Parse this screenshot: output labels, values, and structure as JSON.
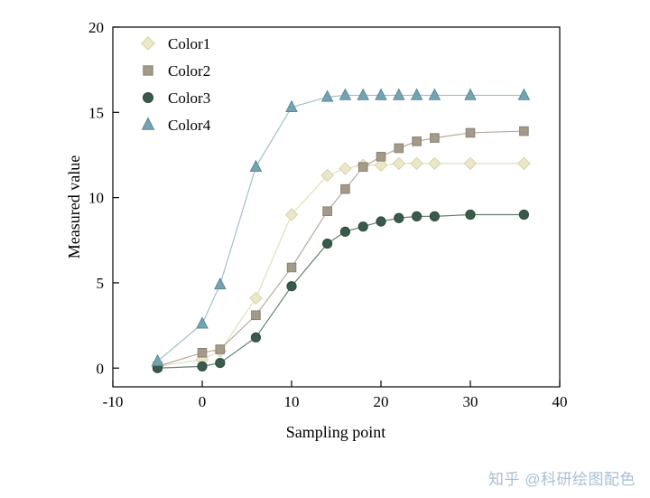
{
  "watermark": {
    "text": "知乎 @科研绘图配色",
    "color": "#a9bfd3"
  },
  "chart_data": {
    "type": "line",
    "title": "",
    "xlabel": "Sampling point",
    "ylabel": "Measured value",
    "xlim": [
      -10,
      40
    ],
    "ylim": [
      -1.1,
      20
    ],
    "xticks": [
      -10,
      0,
      10,
      20,
      30,
      40
    ],
    "yticks": [
      0,
      5,
      10,
      15,
      20
    ],
    "grid": false,
    "legend_position": "top-left-inside",
    "x": [
      -5,
      0,
      2,
      6,
      10,
      14,
      16,
      18,
      20,
      22,
      24,
      26,
      30,
      36
    ],
    "series": [
      {
        "name": "Color1",
        "marker": "diamond",
        "color": "#eae7cb",
        "edge": "#d9d3a9",
        "line": "#e2dfc0",
        "values": [
          0.1,
          0.5,
          1.0,
          4.1,
          9.0,
          11.3,
          11.7,
          11.9,
          11.9,
          12.0,
          12.0,
          12.0,
          12.0,
          12.0
        ]
      },
      {
        "name": "Color2",
        "marker": "square",
        "color": "#a49a89",
        "edge": "#8b8172",
        "line": "#b4ab9c",
        "values": [
          0.1,
          0.9,
          1.1,
          3.1,
          5.9,
          9.2,
          10.5,
          11.8,
          12.4,
          12.9,
          13.3,
          13.5,
          13.8,
          13.9
        ]
      },
      {
        "name": "Color3",
        "marker": "circle",
        "color": "#3a5a4b",
        "edge": "#2c4a3c",
        "line": "#63806f",
        "values": [
          0.0,
          0.1,
          0.3,
          1.8,
          4.8,
          7.3,
          8.0,
          8.3,
          8.6,
          8.8,
          8.9,
          8.9,
          9.0,
          9.0
        ]
      },
      {
        "name": "Color4",
        "marker": "triangle",
        "color": "#74a4b2",
        "edge": "#5a8a98",
        "line": "#a3c0c6",
        "values": [
          0.4,
          2.6,
          4.9,
          11.8,
          15.3,
          15.9,
          16.0,
          16.0,
          16.0,
          16.0,
          16.0,
          16.0,
          16.0,
          16.0
        ]
      }
    ]
  }
}
